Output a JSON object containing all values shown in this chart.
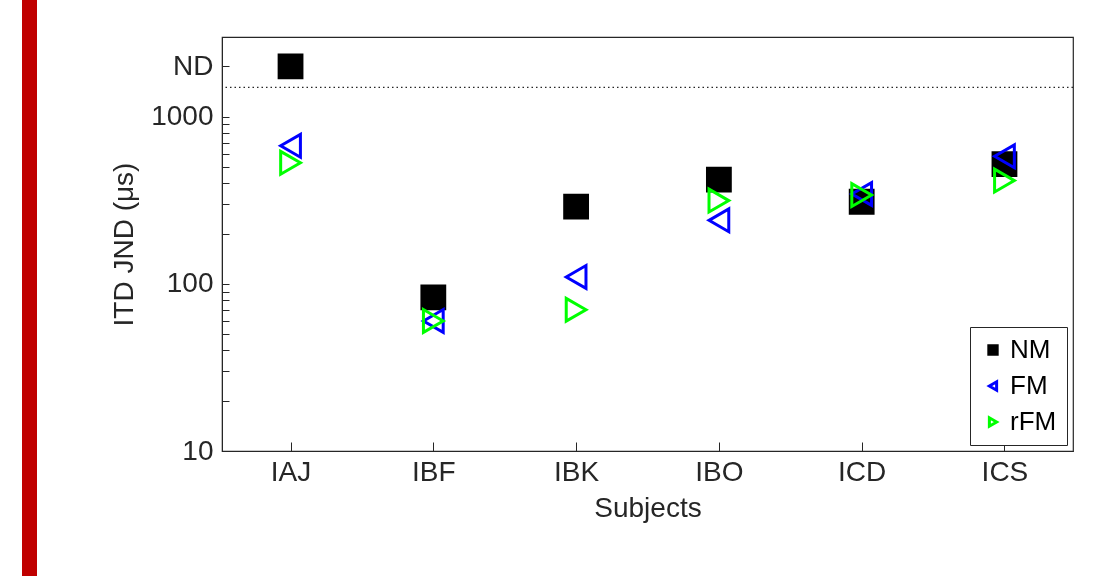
{
  "chart_data": {
    "type": "scatter",
    "xlabel": "Subjects",
    "ylabel": "ITD JND (μs)",
    "categories": [
      "IAJ",
      "IBF",
      "IBK",
      "IBO",
      "ICD",
      "ICS"
    ],
    "series": [
      {
        "name": "NM",
        "color": "#000000",
        "marker": "square",
        "values": [
          2000,
          83,
          290,
          420,
          310,
          520
        ]
      },
      {
        "name": "FM",
        "color": "#0000ff",
        "marker": "triangle-left",
        "values": [
          670,
          60,
          110,
          240,
          345,
          580
        ]
      },
      {
        "name": "rFM",
        "color": "#00ff00",
        "marker": "triangle-right",
        "values": [
          530,
          60,
          70,
          315,
          340,
          415
        ]
      }
    ],
    "log": "y",
    "ylim": [
      10,
      3000
    ],
    "yticks": [
      10,
      {
        "value": 20,
        "label": null
      },
      {
        "value": 30,
        "label": null
      },
      {
        "value": 40,
        "label": null
      },
      {
        "value": 50,
        "label": null
      },
      {
        "value": 60,
        "label": null
      },
      {
        "value": 70,
        "label": null
      },
      {
        "value": 80,
        "label": null
      },
      {
        "value": 90,
        "label": null
      },
      100,
      {
        "value": 200,
        "label": null
      },
      {
        "value": 300,
        "label": null
      },
      {
        "value": 400,
        "label": null
      },
      {
        "value": 500,
        "label": null
      },
      {
        "value": 600,
        "label": null
      },
      {
        "value": 700,
        "label": null
      },
      {
        "value": 800,
        "label": null
      },
      {
        "value": 900,
        "label": null
      },
      1000,
      {
        "value": 2000,
        "label": "ND"
      }
    ],
    "ref_lines": [
      {
        "axis": "y",
        "value": 1500,
        "label": null,
        "color": "#262626",
        "line_style": "dotted"
      }
    ],
    "legend": "bottom right"
  }
}
